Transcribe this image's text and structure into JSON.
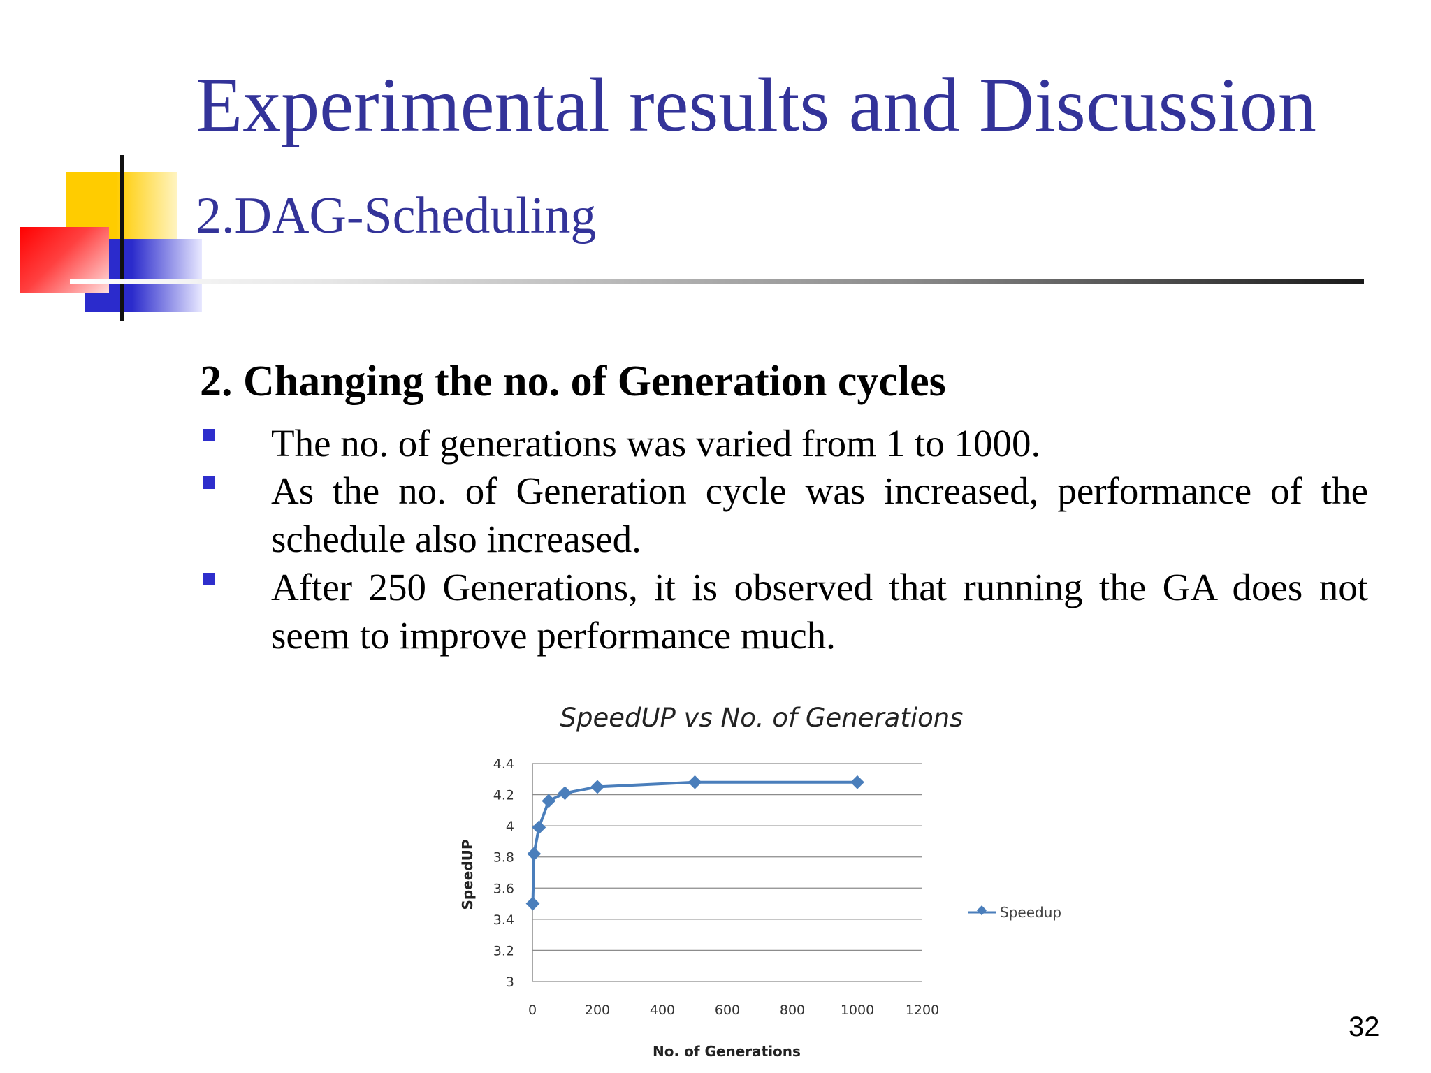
{
  "slide": {
    "title": "Experimental results and Discussion",
    "subtitle": "2.DAG-Scheduling",
    "heading": "2.  Changing the no. of Generation cycles",
    "bullets": [
      "The no. of generations was varied from 1 to 1000.",
      "As the no. of Generation cycle was increased, performance of the schedule also increased.",
      "After 250 Generations, it is observed that running the GA does not seem to improve performance much."
    ],
    "page_number": "32"
  },
  "colors": {
    "title": "#333399",
    "bullet": "#2e2ecc",
    "series": "#4a7ebb"
  },
  "chart_data": {
    "type": "line",
    "title": "SpeedUP vs No. of Generations",
    "xlabel": "No. of Generations",
    "ylabel": "SpeedUP",
    "xlim": [
      0,
      1200
    ],
    "ylim": [
      3,
      4.4
    ],
    "xticks": [
      "0",
      "200",
      "400",
      "600",
      "800",
      "1000",
      "1200"
    ],
    "yticks": [
      "3",
      "3.2",
      "3.4",
      "3.6",
      "3.8",
      "4",
      "4.2",
      "4.4"
    ],
    "grid": true,
    "legend": "right",
    "series": [
      {
        "name": "Speedup",
        "x": [
          1,
          5,
          20,
          50,
          100,
          200,
          500,
          1000
        ],
        "y": [
          3.5,
          3.82,
          3.99,
          4.16,
          4.21,
          4.25,
          4.28,
          4.28
        ]
      }
    ]
  }
}
